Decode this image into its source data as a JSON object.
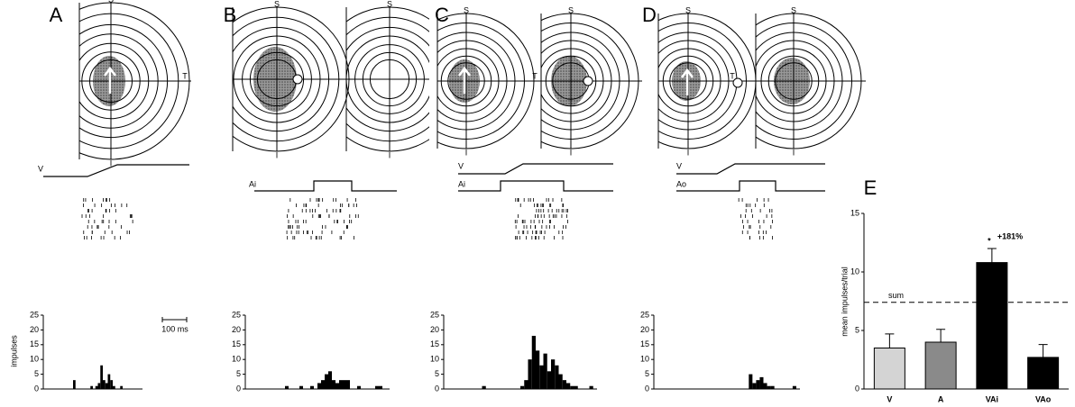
{
  "panel_labels": [
    "A",
    "B",
    "C",
    "D",
    "E"
  ],
  "rf_labels": {
    "superior": "S",
    "temporal": "T",
    "inferior": "I"
  },
  "stimulus_labels": {
    "visual": "V",
    "auditory_in": "Ai",
    "auditory_out": "Ao"
  },
  "scale_bar": "100 ms",
  "chart_data": [
    {
      "type": "histogram",
      "ylabel": "impulses",
      "bins": [
        0,
        1,
        2,
        3,
        4,
        5,
        6,
        7,
        8,
        9,
        10,
        11,
        12,
        13,
        14,
        15,
        16,
        17,
        18,
        19,
        20,
        21,
        22,
        23,
        24,
        25,
        26,
        27,
        28,
        29,
        30,
        31,
        32,
        33,
        34,
        35,
        36,
        37,
        38,
        39,
        40
      ],
      "counts": [
        0,
        0,
        0,
        0,
        0,
        0,
        0,
        0,
        0,
        0,
        0,
        0,
        3,
        0,
        0,
        0,
        0,
        0,
        0,
        1,
        0,
        1,
        2,
        8,
        3,
        2,
        5,
        3,
        1,
        0,
        0,
        1,
        0,
        0,
        0,
        0,
        0,
        0,
        0,
        0
      ],
      "xlim": [
        0,
        40
      ],
      "ylim": [
        0,
        25
      ],
      "yticks": [
        0,
        5,
        10,
        15,
        20,
        25
      ],
      "color": "#000000"
    },
    {
      "type": "histogram",
      "bins": [
        0,
        1,
        2,
        3,
        4,
        5,
        6,
        7,
        8,
        9,
        10,
        11,
        12,
        13,
        14,
        15,
        16,
        17,
        18,
        19,
        20,
        21,
        22,
        23,
        24,
        25,
        26,
        27,
        28,
        29,
        30,
        31,
        32,
        33,
        34,
        35,
        36,
        37,
        38,
        39,
        40
      ],
      "counts": [
        0,
        0,
        0,
        0,
        0,
        0,
        0,
        0,
        0,
        0,
        0,
        1,
        0,
        0,
        0,
        1,
        0,
        0,
        1,
        0,
        2,
        3,
        5,
        6,
        3,
        2,
        3,
        3,
        3,
        0,
        0,
        1,
        0,
        0,
        0,
        0,
        1,
        1,
        0,
        0
      ],
      "xlim": [
        0,
        40
      ],
      "ylim": [
        0,
        25
      ],
      "yticks": [
        0,
        5,
        10,
        15,
        20,
        25
      ],
      "color": "#000000"
    },
    {
      "type": "histogram",
      "bins": [
        0,
        1,
        2,
        3,
        4,
        5,
        6,
        7,
        8,
        9,
        10,
        11,
        12,
        13,
        14,
        15,
        16,
        17,
        18,
        19,
        20,
        21,
        22,
        23,
        24,
        25,
        26,
        27,
        28,
        29,
        30,
        31,
        32,
        33,
        34,
        35,
        36,
        37,
        38,
        39,
        40
      ],
      "counts": [
        0,
        0,
        0,
        0,
        0,
        0,
        0,
        0,
        0,
        0,
        1,
        0,
        0,
        0,
        0,
        0,
        0,
        0,
        0,
        0,
        1,
        3,
        10,
        18,
        13,
        8,
        12,
        6,
        10,
        8,
        5,
        3,
        2,
        1,
        1,
        0,
        0,
        0,
        1,
        0
      ],
      "xlim": [
        0,
        40
      ],
      "ylim": [
        0,
        25
      ],
      "yticks": [
        0,
        5,
        10,
        15,
        20,
        25
      ],
      "color": "#000000"
    },
    {
      "type": "histogram",
      "bins": [
        0,
        1,
        2,
        3,
        4,
        5,
        6,
        7,
        8,
        9,
        10,
        11,
        12,
        13,
        14,
        15,
        16,
        17,
        18,
        19,
        20,
        21,
        22,
        23,
        24,
        25,
        26,
        27,
        28,
        29,
        30,
        31,
        32,
        33,
        34,
        35,
        36,
        37,
        38,
        39,
        40
      ],
      "counts": [
        0,
        0,
        0,
        0,
        0,
        0,
        0,
        0,
        0,
        0,
        0,
        0,
        0,
        0,
        0,
        0,
        0,
        0,
        0,
        0,
        0,
        0,
        0,
        0,
        0,
        0,
        5,
        2,
        3,
        4,
        2,
        1,
        1,
        0,
        0,
        0,
        0,
        0,
        1,
        0
      ],
      "xlim": [
        0,
        40
      ],
      "ylim": [
        0,
        25
      ],
      "yticks": [
        0,
        5,
        10,
        15,
        20,
        25
      ],
      "color": "#000000"
    },
    {
      "type": "bar",
      "ylabel": "mean impulses/trial",
      "categories": [
        "V",
        "A",
        "VAi",
        "VAo"
      ],
      "values": [
        3.5,
        4.0,
        10.8,
        2.7
      ],
      "errors": [
        1.2,
        1.1,
        1.2,
        1.1
      ],
      "colors": [
        "#d4d4d4",
        "#8a8a8a",
        "#000000",
        "#000000"
      ],
      "ylim": [
        0,
        15
      ],
      "yticks": [
        0,
        5,
        10,
        15
      ],
      "reference_line": {
        "value": 7.4,
        "label": "sum"
      },
      "annotation": {
        "marker": "*",
        "text": "+181%"
      }
    }
  ]
}
